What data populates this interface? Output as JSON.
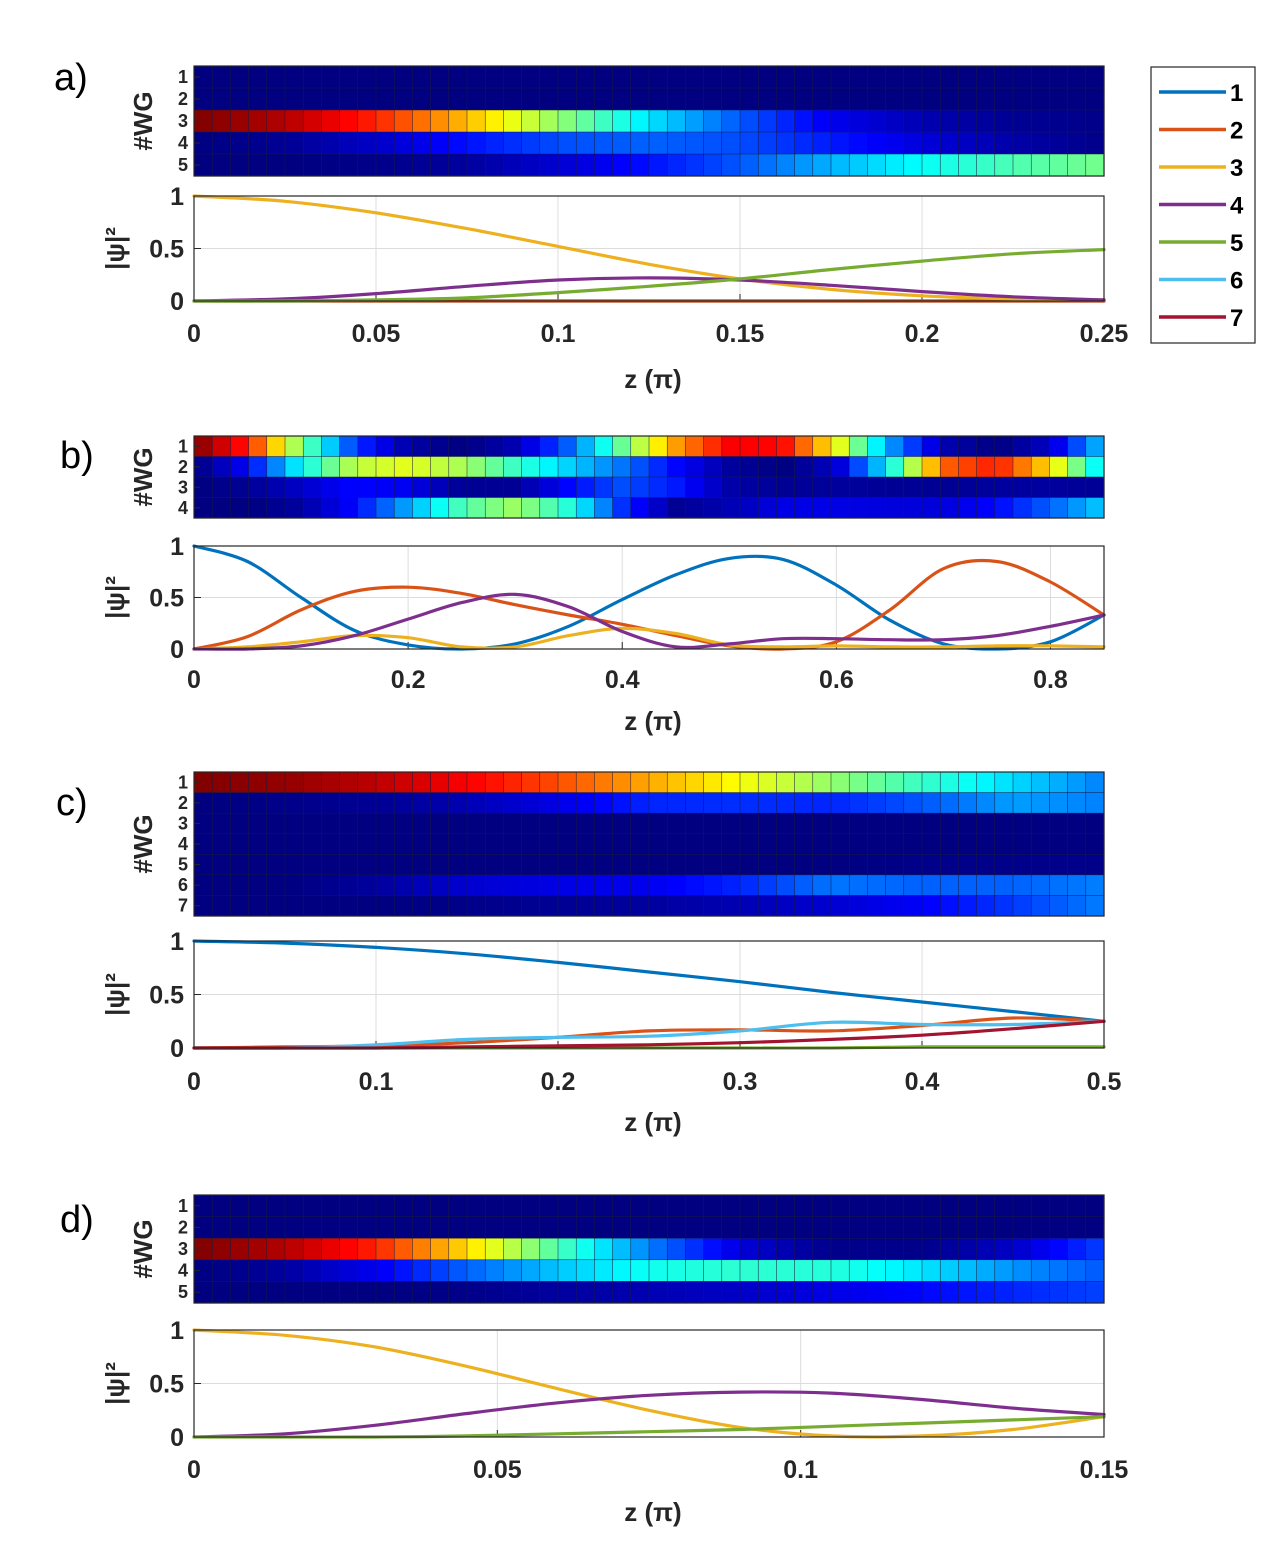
{
  "chart_data": [
    {
      "panel": "a)",
      "type": "line",
      "heatmap_ylabel": "#WG",
      "heatmap_rows": [
        "1",
        "2",
        "3",
        "4",
        "5"
      ],
      "heatmap_columns": 50,
      "xlabel": "z (π)",
      "ylabel": "|ψ|²",
      "xlim": [
        0,
        0.25
      ],
      "ylim": [
        0,
        1
      ],
      "xticks": [
        "0",
        "0.05",
        "0.1",
        "0.15",
        "0.2",
        "0.25"
      ],
      "yticks": [
        "0",
        "0.5",
        "1"
      ],
      "legend": [
        "1",
        "2",
        "3",
        "4",
        "5",
        "6",
        "7"
      ],
      "legend_position": "right of panel a",
      "series_colors": [
        "#0072BD",
        "#D95319",
        "#EDB120",
        "#7E2F8E",
        "#77AC30",
        "#4DBEEE",
        "#A2142F"
      ],
      "x": [
        0,
        0.025,
        0.05,
        0.075,
        0.1,
        0.125,
        0.15,
        0.175,
        0.2,
        0.225,
        0.25
      ],
      "series": [
        {
          "name": "1",
          "values": [
            0,
            0,
            0,
            0,
            0,
            0,
            0,
            0,
            0,
            0,
            0
          ]
        },
        {
          "name": "2",
          "values": [
            0,
            0,
            0,
            0,
            0,
            0,
            0,
            0,
            0,
            0,
            0
          ]
        },
        {
          "name": "3",
          "values": [
            1.0,
            0.95,
            0.84,
            0.69,
            0.52,
            0.35,
            0.21,
            0.11,
            0.05,
            0.02,
            0.01
          ]
        },
        {
          "name": "4",
          "values": [
            0.0,
            0.02,
            0.07,
            0.14,
            0.2,
            0.22,
            0.2,
            0.15,
            0.09,
            0.04,
            0.01
          ]
        },
        {
          "name": "5",
          "values": [
            0.0,
            0.0,
            0.01,
            0.03,
            0.08,
            0.14,
            0.21,
            0.3,
            0.38,
            0.45,
            0.49
          ]
        }
      ]
    },
    {
      "panel": "b)",
      "type": "line",
      "heatmap_ylabel": "#WG",
      "heatmap_rows": [
        "1",
        "2",
        "3",
        "4"
      ],
      "heatmap_columns": 50,
      "xlabel": "z (π)",
      "ylabel": "|ψ|²",
      "xlim": [
        0,
        0.85
      ],
      "ylim": [
        0,
        1
      ],
      "xticks": [
        "0",
        "0.2",
        "0.4",
        "0.6",
        "0.8"
      ],
      "yticks": [
        "0",
        "0.5",
        "1"
      ],
      "x": [
        0,
        0.05,
        0.1,
        0.15,
        0.2,
        0.25,
        0.3,
        0.35,
        0.4,
        0.45,
        0.5,
        0.55,
        0.6,
        0.65,
        0.7,
        0.75,
        0.8,
        0.85
      ],
      "series": [
        {
          "name": "1",
          "values": [
            1.0,
            0.85,
            0.5,
            0.18,
            0.04,
            0.0,
            0.05,
            0.22,
            0.48,
            0.72,
            0.88,
            0.87,
            0.62,
            0.28,
            0.05,
            0.0,
            0.07,
            0.33
          ]
        },
        {
          "name": "2",
          "values": [
            0.0,
            0.12,
            0.38,
            0.56,
            0.6,
            0.54,
            0.43,
            0.33,
            0.24,
            0.13,
            0.03,
            0.0,
            0.07,
            0.38,
            0.78,
            0.85,
            0.65,
            0.33
          ]
        },
        {
          "name": "3",
          "values": [
            0.0,
            0.02,
            0.07,
            0.13,
            0.11,
            0.02,
            0.02,
            0.13,
            0.2,
            0.15,
            0.04,
            0.02,
            0.03,
            0.02,
            0.02,
            0.03,
            0.03,
            0.02
          ]
        },
        {
          "name": "4",
          "values": [
            0.0,
            0.0,
            0.03,
            0.13,
            0.29,
            0.45,
            0.53,
            0.41,
            0.17,
            0.02,
            0.05,
            0.1,
            0.1,
            0.09,
            0.09,
            0.13,
            0.22,
            0.33
          ]
        }
      ]
    },
    {
      "panel": "c)",
      "type": "line",
      "heatmap_ylabel": "#WG",
      "heatmap_rows": [
        "1",
        "2",
        "3",
        "4",
        "5",
        "6",
        "7"
      ],
      "heatmap_columns": 50,
      "xlabel": "z (π)",
      "ylabel": "|ψ|²",
      "xlim": [
        0,
        0.5
      ],
      "ylim": [
        0,
        1
      ],
      "xticks": [
        "0",
        "0.1",
        "0.2",
        "0.3",
        "0.4",
        "0.5"
      ],
      "yticks": [
        "0",
        "0.5",
        "1"
      ],
      "x": [
        0,
        0.05,
        0.1,
        0.15,
        0.2,
        0.25,
        0.3,
        0.35,
        0.4,
        0.45,
        0.5
      ],
      "series": [
        {
          "name": "1",
          "values": [
            1.0,
            0.98,
            0.94,
            0.88,
            0.8,
            0.71,
            0.62,
            0.52,
            0.43,
            0.34,
            0.25
          ]
        },
        {
          "name": "2",
          "values": [
            0.0,
            0.01,
            0.02,
            0.05,
            0.1,
            0.16,
            0.17,
            0.16,
            0.21,
            0.28,
            0.25
          ]
        },
        {
          "name": "5",
          "values": [
            0.0,
            0.0,
            0.0,
            0.0,
            0.0,
            0.0,
            0.0,
            0.0,
            0.01,
            0.01,
            0.01
          ]
        },
        {
          "name": "6",
          "values": [
            0.0,
            0.0,
            0.03,
            0.08,
            0.1,
            0.11,
            0.16,
            0.24,
            0.22,
            0.22,
            0.25
          ]
        },
        {
          "name": "7",
          "values": [
            0.0,
            0.0,
            0.0,
            0.01,
            0.02,
            0.03,
            0.05,
            0.08,
            0.12,
            0.18,
            0.25
          ]
        }
      ]
    },
    {
      "panel": "d)",
      "type": "line",
      "heatmap_ylabel": "#WG",
      "heatmap_rows": [
        "1",
        "2",
        "3",
        "4",
        "5"
      ],
      "heatmap_columns": 50,
      "xlabel": "z (π)",
      "ylabel": "|ψ|²",
      "xlim": [
        0,
        0.15
      ],
      "ylim": [
        0,
        1
      ],
      "xticks": [
        "0",
        "0.05",
        "0.1",
        "0.15"
      ],
      "yticks": [
        "0",
        "0.5",
        "1"
      ],
      "x": [
        0,
        0.015,
        0.03,
        0.045,
        0.06,
        0.075,
        0.09,
        0.105,
        0.12,
        0.135,
        0.15
      ],
      "series": [
        {
          "name": "3",
          "values": [
            1.0,
            0.95,
            0.84,
            0.66,
            0.45,
            0.25,
            0.09,
            0.01,
            0.01,
            0.07,
            0.19
          ]
        },
        {
          "name": "4",
          "values": [
            0.0,
            0.03,
            0.11,
            0.22,
            0.32,
            0.39,
            0.42,
            0.41,
            0.35,
            0.27,
            0.21
          ]
        },
        {
          "name": "5",
          "values": [
            0.0,
            0.0,
            0.0,
            0.01,
            0.03,
            0.05,
            0.07,
            0.1,
            0.13,
            0.16,
            0.19
          ]
        }
      ]
    }
  ]
}
